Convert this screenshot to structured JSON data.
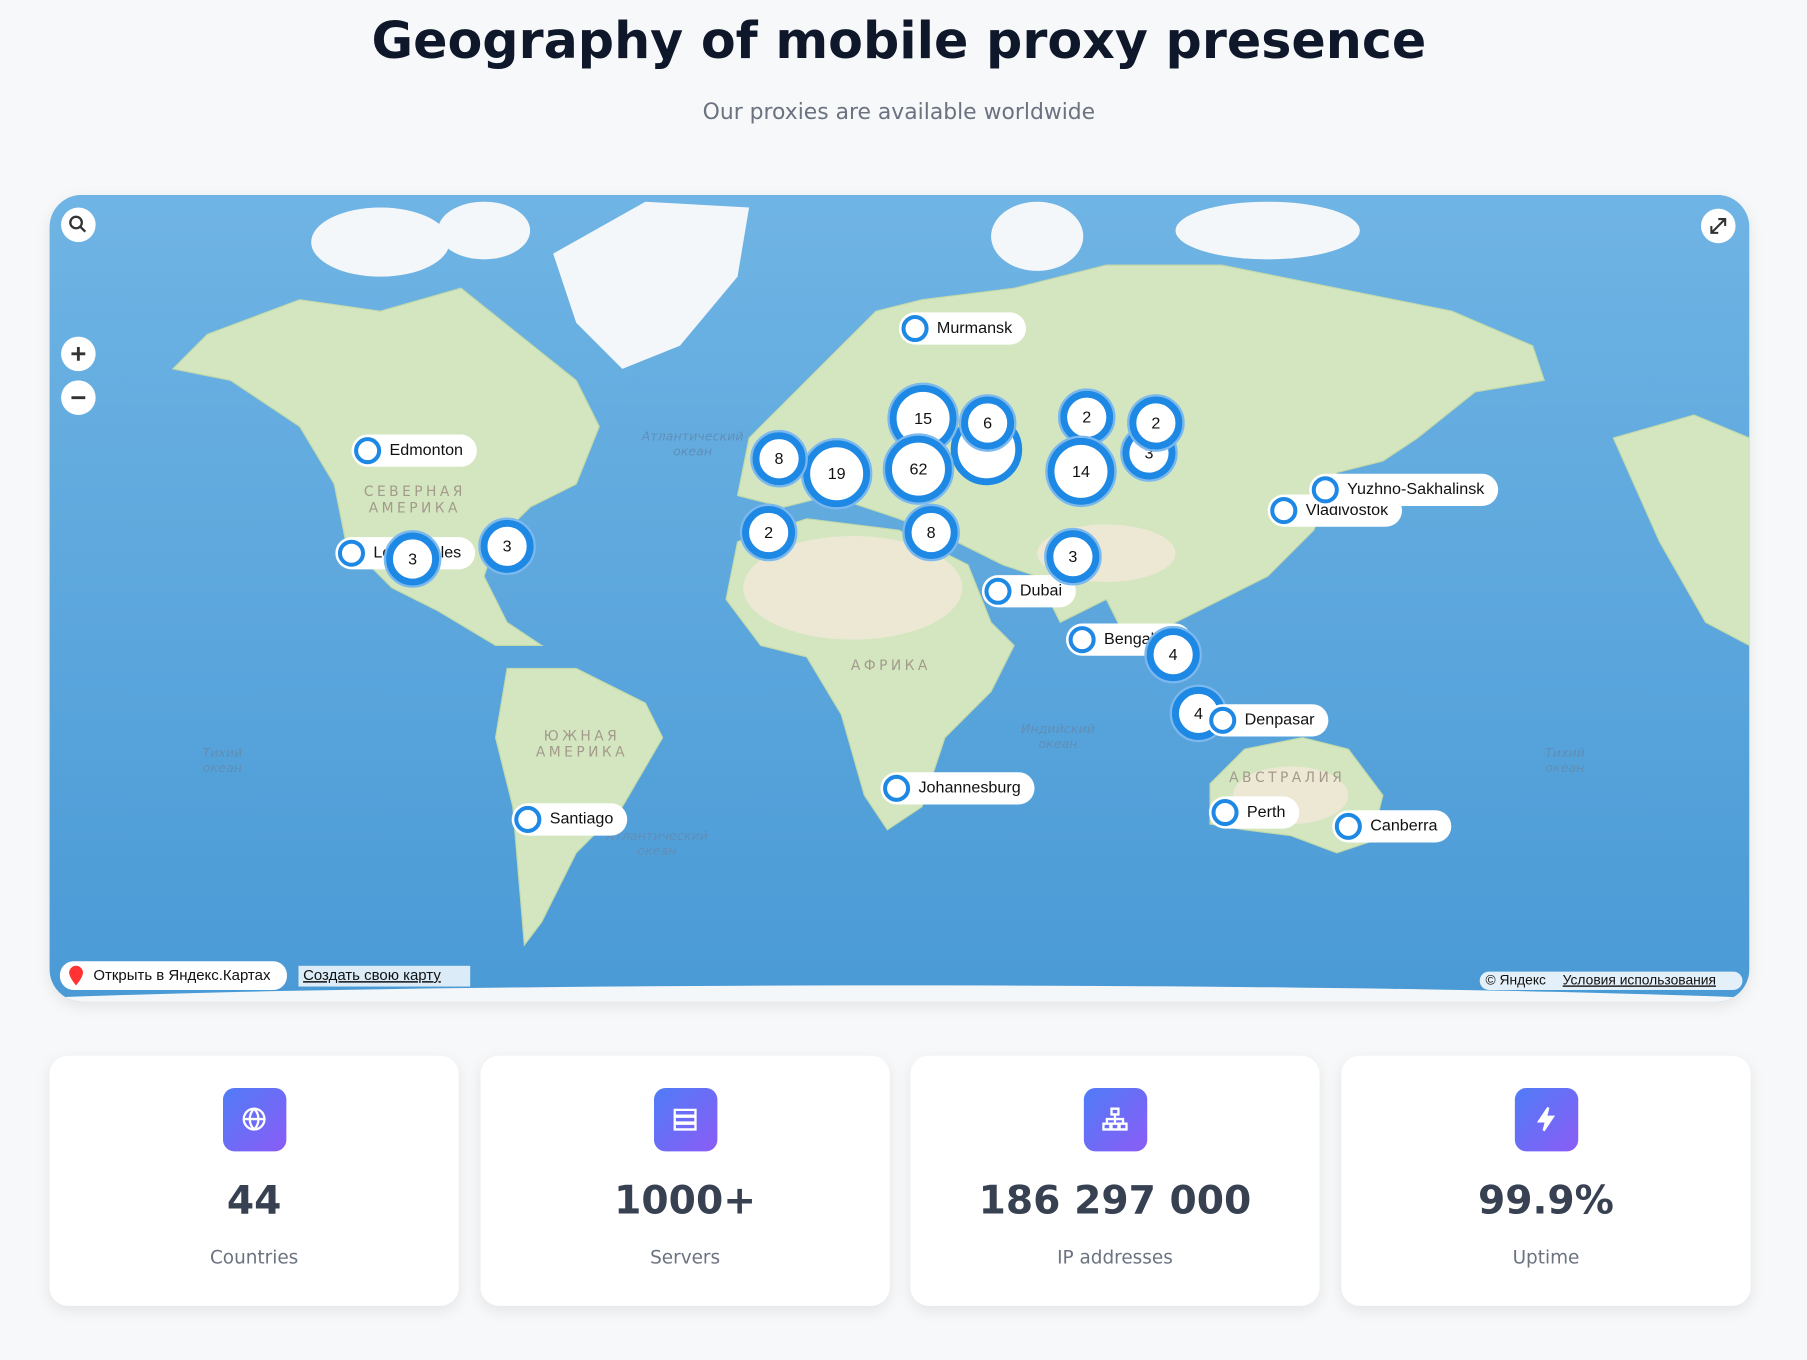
{
  "header": {
    "title": "Geography of mobile proxy presence",
    "subtitle": "Our proxies are available worldwide"
  },
  "map": {
    "cities": [
      "Murmansk",
      "Edmonton",
      "Los Angeles",
      "Dubai",
      "Bengaluru",
      "Vladivostok",
      "Yuzhno-Sakhalinsk",
      "Johannesburg",
      "Santiago",
      "Perth",
      "Canberra",
      "Denpasar"
    ],
    "clusters": [
      3,
      15,
      62,
      19,
      6,
      2,
      2,
      14,
      8,
      2,
      8,
      3,
      3,
      3,
      4,
      4
    ],
    "region_labels": [
      [
        "СЕВЕРНАЯ",
        "АМЕРИКА"
      ],
      [
        "ЮЖНАЯ",
        "АМЕРИКА"
      ],
      [
        "АФРИКА"
      ],
      [
        "АВСТРАЛИЯ"
      ]
    ],
    "ocean_labels": [
      [
        "Тихий",
        "океан"
      ],
      [
        "Атлантический",
        "океан"
      ],
      [
        "Атлантический",
        "океан"
      ],
      [
        "Индийский",
        "океан"
      ],
      [
        "Тихий",
        "океан"
      ]
    ],
    "controls": {
      "open_in_yandex": "Открыть в Яндекс.Картах",
      "create_map": "Создать свою карту",
      "copyright": "© Яндекс",
      "terms": "Условия использования"
    }
  },
  "stats": [
    {
      "value": "44",
      "label": "Countries"
    },
    {
      "value": "1000+",
      "label": "Servers"
    },
    {
      "value": "186 297 000",
      "label": "IP addresses"
    },
    {
      "value": "99.9%",
      "label": "Uptime"
    }
  ]
}
